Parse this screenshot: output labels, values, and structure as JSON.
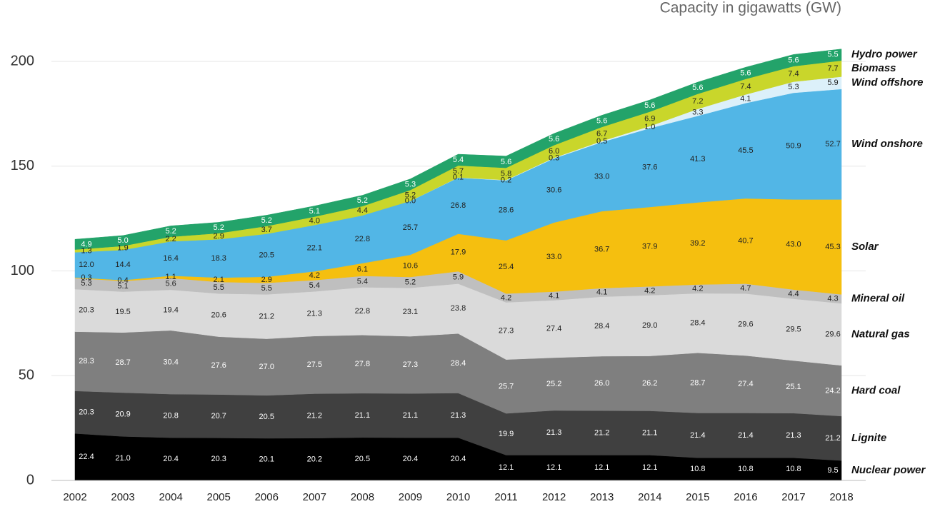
{
  "chart_data": {
    "type": "stacked_area",
    "subtitle": "Capacity in gigawatts (GW)",
    "categories": [
      "2002",
      "2003",
      "2004",
      "2005",
      "2006",
      "2007",
      "2008",
      "2009",
      "2010",
      "2011",
      "2012",
      "2013",
      "2014",
      "2015",
      "2016",
      "2017",
      "2018"
    ],
    "ylim": [
      0,
      210
    ],
    "yticks": [
      0,
      50,
      100,
      150,
      200
    ],
    "grid": true,
    "series": [
      {
        "name": "Nuclear power",
        "color": "#000000",
        "values": [
          22.4,
          21.0,
          20.4,
          20.3,
          20.1,
          20.2,
          20.5,
          20.4,
          20.4,
          12.1,
          12.1,
          12.1,
          12.1,
          10.8,
          10.8,
          10.8,
          9.5
        ],
        "value_labels": [
          "22.4",
          "21.0",
          "20.4",
          "20.3",
          "20.1",
          "20.2",
          "20.5",
          "20.4",
          "20.4",
          "12.1",
          "12.1",
          "12.1",
          "12.1",
          "10.8",
          "10.8",
          "10.8",
          "9.5"
        ]
      },
      {
        "name": "Lignite",
        "color": "#404040",
        "values": [
          20.3,
          20.9,
          20.8,
          20.7,
          20.5,
          21.2,
          21.1,
          21.1,
          21.3,
          19.9,
          21.3,
          21.2,
          21.1,
          21.4,
          21.4,
          21.3,
          21.2
        ],
        "value_labels": [
          "20.3",
          "20.9",
          "20.8",
          "20.7",
          "20.5",
          "21.2",
          "21.1",
          "21.1",
          "21.3",
          "19.9",
          "21.3",
          "21.2",
          "21.1",
          "21.4",
          "21.4",
          "21.3",
          "21.2"
        ]
      },
      {
        "name": "Hard coal",
        "color": "#7f7f7f",
        "values": [
          28.3,
          28.7,
          30.4,
          27.6,
          27.0,
          27.5,
          27.8,
          27.3,
          28.4,
          25.7,
          25.2,
          26.0,
          26.2,
          28.7,
          27.4,
          25.1,
          24.2
        ],
        "value_labels": [
          "28.3",
          "28.7",
          "30.4",
          "27.6",
          "27.0",
          "27.5",
          "27.8",
          "27.3",
          "28.4",
          "25.7",
          "25.2",
          "26.0",
          "26.2",
          "28.7",
          "27.4",
          "25.1",
          "24.2"
        ]
      },
      {
        "name": "Natural gas",
        "color": "#dadada",
        "values": [
          20.3,
          19.5,
          19.4,
          20.6,
          21.2,
          21.3,
          22.8,
          23.1,
          23.8,
          27.3,
          27.4,
          28.4,
          29.0,
          28.4,
          29.6,
          29.5,
          29.6
        ],
        "value_labels": [
          "20.3",
          "19.5",
          "19.4",
          "20.6",
          "21.2",
          "21.3",
          "22.8",
          "23.1",
          "23.8",
          "27.3",
          "27.4",
          "28.4",
          "29.0",
          "28.4",
          "29.6",
          "29.5",
          "29.6"
        ]
      },
      {
        "name": "Mineral oil",
        "color": "#bfbfbf",
        "values": [
          5.3,
          5.1,
          5.6,
          5.5,
          5.5,
          5.4,
          5.4,
          5.2,
          5.9,
          4.2,
          4.1,
          4.1,
          4.2,
          4.2,
          4.7,
          4.4,
          4.3
        ],
        "value_labels": [
          "5.3",
          "5.1",
          "5.6",
          "5.5",
          "5.5",
          "5.4",
          "5.4",
          "5.2",
          "5.9",
          "4.2",
          "4.1",
          "4.1",
          "4.2",
          "4.2",
          "4.7",
          "4.4",
          "4.3"
        ]
      },
      {
        "name": "Solar",
        "color": "#f5bf0f",
        "values": [
          0.3,
          0.4,
          1.1,
          2.1,
          2.9,
          4.2,
          6.1,
          10.6,
          17.9,
          25.4,
          33.0,
          36.7,
          37.9,
          39.2,
          40.7,
          43.0,
          45.3
        ],
        "value_labels": [
          "0.3",
          "0.4",
          "1.1",
          "2.1",
          "2.9",
          "4.2",
          "6.1",
          "10.6",
          "17.9",
          "25.4",
          "33.0",
          "36.7",
          "37.9",
          "39.2",
          "40.7",
          "43.0",
          "45.3"
        ]
      },
      {
        "name": "Wind onshore",
        "color": "#52b6e6",
        "values": [
          12.0,
          14.4,
          16.4,
          18.3,
          20.5,
          22.1,
          22.8,
          25.7,
          26.8,
          28.6,
          30.6,
          33.0,
          37.6,
          41.3,
          45.5,
          50.9,
          52.7
        ],
        "value_labels": [
          "12.0",
          "14.4",
          "16.4",
          "18.3",
          "20.5",
          "22.1",
          "22.8",
          "25.7",
          "26.8",
          "28.6",
          "30.6",
          "33.0",
          "37.6",
          "41.3",
          "45.5",
          "50.9",
          "52.7"
        ]
      },
      {
        "name": "Wind offshore",
        "color": "#dcf0fa",
        "values": [
          null,
          null,
          null,
          null,
          null,
          null,
          null,
          0.0,
          0.1,
          0.2,
          0.3,
          0.5,
          1.0,
          3.3,
          4.1,
          5.3,
          5.9
        ],
        "value_labels": [
          null,
          null,
          null,
          null,
          null,
          null,
          null,
          "0.0",
          "0.1",
          "0.2",
          "0.3",
          "0.5",
          "1.0",
          "3.3",
          "4.1",
          "5.3",
          "5.9"
        ]
      },
      {
        "name": "Biomass",
        "color": "#c9d62b",
        "values": [
          1.3,
          1.9,
          2.2,
          2.9,
          3.7,
          4.0,
          4.4,
          5.2,
          5.7,
          5.8,
          6.0,
          6.7,
          6.9,
          7.2,
          7.4,
          7.4,
          7.7
        ],
        "value_labels": [
          "1.3",
          "1.9",
          "2.2",
          "2.9",
          "3.7",
          "4.0",
          "4.4",
          "5.2",
          "5.7",
          "5.8",
          "6.0",
          "6.7",
          "6.9",
          "7.2",
          "7.4",
          "7.4",
          "7.7"
        ]
      },
      {
        "name": "Hydro power",
        "color": "#23a36a",
        "values": [
          4.9,
          5.0,
          5.2,
          5.2,
          5.2,
          5.1,
          5.2,
          5.3,
          5.4,
          5.6,
          5.6,
          5.6,
          5.6,
          5.6,
          5.6,
          5.6,
          5.5
        ],
        "value_labels": [
          "4.9",
          "5.0",
          "5.2",
          "5.2",
          "5.2",
          "5.1",
          "5.2",
          "5.3",
          "5.4",
          "5.6",
          "5.6",
          "5.6",
          "5.6",
          "5.6",
          "5.6",
          "5.6",
          "5.5"
        ]
      }
    ]
  }
}
